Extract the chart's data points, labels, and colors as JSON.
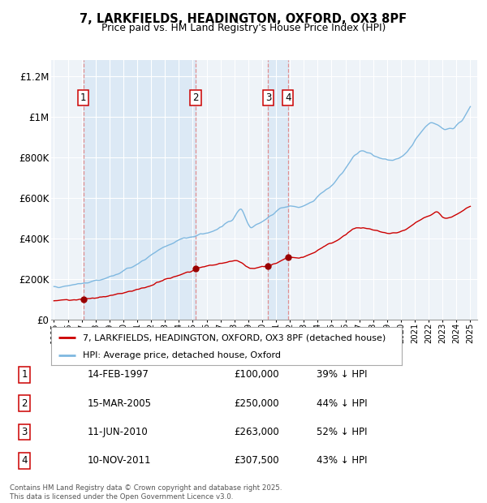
{
  "title_line1": "7, LARKFIELDS, HEADINGTON, OXFORD, OX3 8PF",
  "title_line2": "Price paid vs. HM Land Registry's House Price Index (HPI)",
  "background_color": "#ffffff",
  "plot_bg_color": "#eef3f8",
  "grid_color": "#ffffff",
  "hpi_color": "#7fb8e0",
  "price_color": "#cc0000",
  "sale_marker_color": "#990000",
  "vline_color": "#e08080",
  "highlight_bg": "#dce9f5",
  "sales": [
    {
      "num": 1,
      "date_x": 1997.12,
      "price": 100000,
      "label": "14-FEB-1997",
      "pct": "39% ↓ HPI"
    },
    {
      "num": 2,
      "date_x": 2005.21,
      "price": 250000,
      "label": "15-MAR-2005",
      "pct": "44% ↓ HPI"
    },
    {
      "num": 3,
      "date_x": 2010.44,
      "price": 263000,
      "label": "11-JUN-2010",
      "pct": "52% ↓ HPI"
    },
    {
      "num": 4,
      "date_x": 2011.86,
      "price": 307500,
      "label": "10-NOV-2011",
      "pct": "43% ↓ HPI"
    }
  ],
  "ylim": [
    0,
    1280000
  ],
  "xlim_start": 1994.8,
  "xlim_end": 2025.5,
  "yticks": [
    0,
    200000,
    400000,
    600000,
    800000,
    1000000,
    1200000
  ],
  "ytick_labels": [
    "£0",
    "£200K",
    "£400K",
    "£600K",
    "£800K",
    "£1M",
    "£1.2M"
  ],
  "legend_line1": "7, LARKFIELDS, HEADINGTON, OXFORD, OX3 8PF (detached house)",
  "legend_line2": "HPI: Average price, detached house, Oxford",
  "table_rows": [
    [
      "1",
      "14-FEB-1997",
      "£100,000",
      "39% ↓ HPI"
    ],
    [
      "2",
      "15-MAR-2005",
      "£250,000",
      "44% ↓ HPI"
    ],
    [
      "3",
      "11-JUN-2010",
      "£263,000",
      "52% ↓ HPI"
    ],
    [
      "4",
      "10-NOV-2011",
      "£307,500",
      "43% ↓ HPI"
    ]
  ],
  "footer": "Contains HM Land Registry data © Crown copyright and database right 2025.\nThis data is licensed under the Open Government Licence v3.0."
}
